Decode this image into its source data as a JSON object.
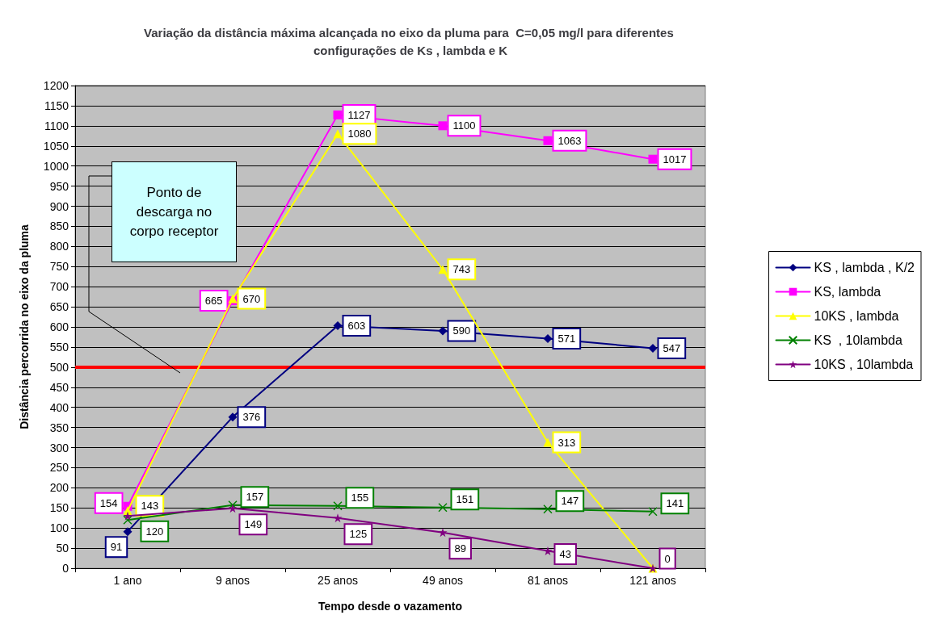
{
  "chart_data": {
    "type": "line",
    "title": "Variação da distância máxima alcançada no eixo da pluma para  C=0,05 mg/l para diferentes configurações de Ks , lambda e K",
    "xlabel": "Tempo desde o vazamento",
    "ylabel": "Distância percorrida no eixo da pluma",
    "categories": [
      "1 ano",
      "9 anos",
      "25 anos",
      "49 anos",
      "81 anos",
      "121 anos"
    ],
    "series": [
      {
        "name": "KS , lambda , K/2",
        "color": "#000080",
        "marker": "diamond",
        "values": [
          91,
          376,
          603,
          590,
          571,
          547
        ],
        "value_labels": [
          "91",
          "376",
          "603",
          "590",
          "571",
          "547"
        ]
      },
      {
        "name": "KS, lambda",
        "color": "#ff00ff",
        "marker": "square",
        "values": [
          154,
          665,
          1127,
          1100,
          1063,
          1017
        ],
        "value_labels": [
          "154",
          "665",
          "1127",
          "1100",
          "1063",
          "1017"
        ]
      },
      {
        "name": "10KS , lambda",
        "color": "#ffff00",
        "marker": "triangle",
        "values": [
          143,
          670,
          1080,
          743,
          313,
          0
        ],
        "value_labels": [
          "143",
          "670",
          "1080",
          "743",
          "313",
          null
        ]
      },
      {
        "name": "KS  , 10lambda",
        "color": "#008000",
        "marker": "cross",
        "values": [
          120,
          157,
          155,
          151,
          147,
          141
        ],
        "value_labels": [
          "120",
          "157",
          "155",
          "151",
          "147",
          "141"
        ]
      },
      {
        "name": "10KS , 10lambda",
        "color": "#800080",
        "marker": "star",
        "values": [
          130,
          149,
          125,
          89,
          43,
          0
        ],
        "value_labels": [
          null,
          "149",
          "125",
          "89",
          "43",
          "0"
        ]
      }
    ],
    "ylim": [
      0,
      1200
    ],
    "yticks": [
      0,
      50,
      100,
      150,
      200,
      250,
      300,
      350,
      400,
      450,
      500,
      550,
      600,
      650,
      700,
      750,
      800,
      850,
      900,
      950,
      1000,
      1050,
      1100,
      1150,
      1200
    ],
    "grid": "y",
    "legend": "right",
    "ref_lines": [
      {
        "axis": "y",
        "value": 500,
        "label": null,
        "color": "#ff0000"
      }
    ],
    "annotations": [
      "Ponto de descarga no corpo receptor"
    ]
  }
}
